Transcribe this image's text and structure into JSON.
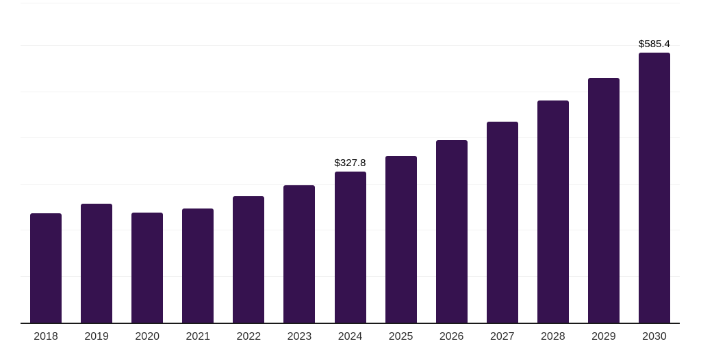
{
  "chart_data": {
    "type": "bar",
    "title": "",
    "xlabel": "",
    "ylabel": "",
    "categories": [
      "2018",
      "2019",
      "2020",
      "2021",
      "2022",
      "2023",
      "2024",
      "2025",
      "2026",
      "2027",
      "2028",
      "2029",
      "2030"
    ],
    "values": [
      237,
      258,
      238,
      248,
      274,
      298,
      327.8,
      361,
      396,
      436,
      481,
      530,
      585.4
    ],
    "data_labels": [
      "",
      "",
      "",
      "",
      "",
      "",
      "$327.8",
      "",
      "",
      "",
      "",
      "",
      "$585.4"
    ],
    "ylim": [
      0,
      692
    ],
    "gridline_values": [
      100,
      200,
      300,
      400,
      500,
      600
    ],
    "grid": "horizontal",
    "legend_position": "none",
    "y_tick_labels_visible": false,
    "colors": {
      "bar": "#36124F",
      "axis_line": "#1A1A1A",
      "gridline": "#F2F2F2",
      "background": "#FFFFFF",
      "tick_label": "#2D2D2D",
      "data_label": "#000000"
    }
  }
}
